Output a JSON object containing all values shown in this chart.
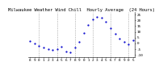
{
  "title": "Milwaukee Weather Wind Chill  Hourly Average  (24 Hours)",
  "hours": [
    0,
    1,
    2,
    3,
    4,
    5,
    6,
    7,
    8,
    9,
    10,
    11,
    12,
    13,
    14,
    15,
    16,
    17,
    18,
    19,
    20,
    21,
    22,
    23
  ],
  "wind_chill": [
    2,
    0,
    -2,
    -4,
    -5,
    -6,
    -5,
    -3,
    -7,
    -8,
    -4,
    1,
    9,
    16,
    21,
    23,
    22,
    19,
    13,
    8,
    4,
    1,
    -1,
    3
  ],
  "line_color": "#0000cc",
  "bg_color": "#ffffff",
  "grid_color": "#888888",
  "yticks": [
    -10,
    -5,
    0,
    5,
    10,
    15,
    20,
    25
  ],
  "ylim": [
    -12,
    27
  ],
  "xlim": [
    -0.5,
    23.5
  ],
  "vgrid_positions": [
    2,
    6,
    10,
    14,
    18,
    22
  ],
  "marker_size": 1.2,
  "title_fontsize": 4.0,
  "tick_fontsize": 3.2
}
